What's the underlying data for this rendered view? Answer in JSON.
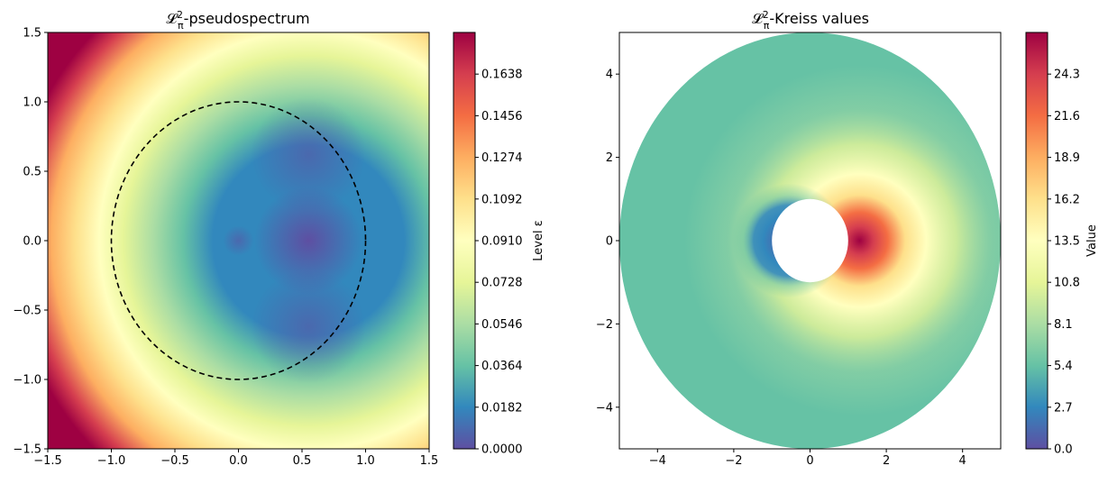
{
  "colormap": [
    "#5e4fa2",
    "#3288bd",
    "#66c2a5",
    "#abdda4",
    "#e6f598",
    "#ffffbf",
    "#fee08b",
    "#fdae61",
    "#f46d43",
    "#d53e4f",
    "#9e0142"
  ],
  "chart_data": [
    {
      "type": "heatmap",
      "title_main": "𝓛",
      "title_sup": "2",
      "title_sub": "π",
      "title_rest": "-pseudospectrum",
      "xlim": [
        -1.5,
        1.5
      ],
      "ylim": [
        -1.5,
        1.5
      ],
      "xticks": [
        "−1.5",
        "−1.0",
        "−0.5",
        "0.0",
        "0.5",
        "1.0",
        "1.5"
      ],
      "yticks": [
        "−1.5",
        "−1.0",
        "−0.5",
        "0.0",
        "0.5",
        "1.0",
        "1.5"
      ],
      "dashed_circle": {
        "center": [
          0,
          0
        ],
        "radius": 1.0
      },
      "minima": [
        [
          0.0,
          0.0
        ],
        [
          0.55,
          0.62
        ],
        [
          0.55,
          -0.62
        ]
      ],
      "colorbar": {
        "label": "Level ε",
        "range": [
          0.0,
          0.182
        ],
        "ticks": [
          "0.0000",
          "0.0182",
          "0.0364",
          "0.0546",
          "0.0728",
          "0.0910",
          "0.1092",
          "0.1274",
          "0.1456",
          "0.1638"
        ]
      }
    },
    {
      "type": "heatmap",
      "title_main": "𝓛",
      "title_sup": "2",
      "title_sub": "π",
      "title_rest": "-Kreiss values",
      "xlim": [
        -5,
        5
      ],
      "ylim": [
        -5,
        5
      ],
      "xticks": [
        "−4",
        "−2",
        "0",
        "2",
        "4"
      ],
      "yticks": [
        "−4",
        "−2",
        "0",
        "2",
        "4"
      ],
      "annulus": {
        "inner_radius": 1.0,
        "outer_radius": 5.0
      },
      "peak": [
        1.3,
        0.0
      ],
      "colorbar": {
        "label": "Value",
        "range": [
          0.0,
          27.0
        ],
        "ticks": [
          "0.0",
          "2.7",
          "5.4",
          "8.1",
          "10.8",
          "13.5",
          "16.2",
          "18.9",
          "21.6",
          "24.3"
        ]
      }
    }
  ]
}
